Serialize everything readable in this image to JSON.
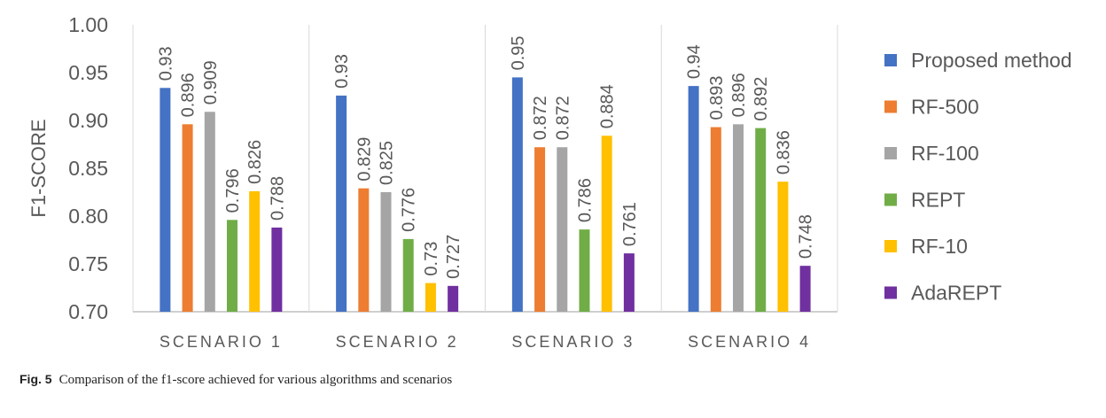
{
  "chart_data": {
    "type": "bar",
    "ylabel": "F1-SCORE",
    "xlabel": "",
    "ylim": [
      0.7,
      1.0
    ],
    "yticks": [
      "0.70",
      "0.75",
      "0.80",
      "0.85",
      "0.90",
      "0.95",
      "1.00"
    ],
    "categories": [
      "SCENARIO 1",
      "SCENARIO 2",
      "SCENARIO 3",
      "SCENARIO 4"
    ],
    "legend_position": "right",
    "series": [
      {
        "name": "Proposed method",
        "color": "#4472C4",
        "values": [
          0.934,
          0.926,
          0.945,
          0.936
        ],
        "labels": [
          "0.93",
          "0.93",
          "0.95",
          "0.94"
        ]
      },
      {
        "name": "RF-500",
        "color": "#ED7D31",
        "values": [
          0.896,
          0.829,
          0.872,
          0.893
        ],
        "labels": [
          "0.896",
          "0.829",
          "0.872",
          "0.893"
        ]
      },
      {
        "name": "RF-100",
        "color": "#A5A5A5",
        "values": [
          0.909,
          0.825,
          0.872,
          0.896
        ],
        "labels": [
          "0.909",
          "0.825",
          "0.872",
          "0.896"
        ]
      },
      {
        "name": "REPT",
        "color": "#70AD47",
        "values": [
          0.796,
          0.776,
          0.786,
          0.892
        ],
        "labels": [
          "0.796",
          "0.776",
          "0.786",
          "0.892"
        ]
      },
      {
        "name": "RF-10",
        "color": "#FFC000",
        "values": [
          0.826,
          0.73,
          0.884,
          0.836
        ],
        "labels": [
          "0.826",
          "0.73",
          "0.884",
          "0.836"
        ]
      },
      {
        "name": "AdaREPT",
        "color": "#7030A0",
        "values": [
          0.788,
          0.727,
          0.761,
          0.748
        ],
        "labels": [
          "0.788",
          "0.727",
          "0.761",
          "0.748"
        ]
      }
    ]
  },
  "caption": {
    "fig_label": "Fig. 5",
    "text": "Comparison of the f1-score achieved for various algorithms and scenarios"
  }
}
